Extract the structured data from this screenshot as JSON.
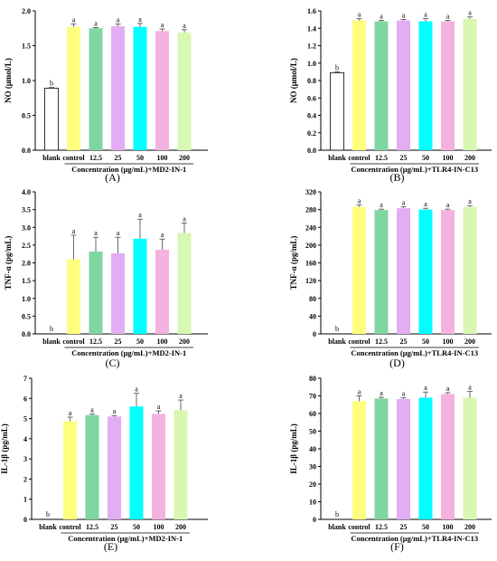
{
  "colors": {
    "blank": "#ffffff",
    "control": "#ffff7f",
    "12.5": "#7fd6a0",
    "25": "#e3adf3",
    "50": "#00ffff",
    "100": "#f5b2e0",
    "200": "#d8f7b2"
  },
  "chart_data": [
    {
      "panel": "(A)",
      "type": "bar",
      "categories": [
        "blank",
        "control",
        "12.5",
        "25",
        "50",
        "100",
        "200"
      ],
      "values": [
        0.89,
        1.77,
        1.75,
        1.78,
        1.77,
        1.71,
        1.69
      ],
      "errors": [
        0.01,
        0.04,
        0.01,
        0.03,
        0.05,
        0.03,
        0.04
      ],
      "letters": [
        "b",
        "a",
        "a",
        "a",
        "a",
        "a",
        "a"
      ],
      "ylabel": "NO (μmol/L)",
      "xlabel": "Concentration (μg/mL)+MD2-IN-1",
      "ylim": [
        0,
        2.0
      ],
      "yticks": [
        "0.0",
        "0.5",
        "1.0",
        "1.5",
        "2.0"
      ]
    },
    {
      "panel": "(B)",
      "type": "bar",
      "categories": [
        "blank",
        "control",
        "12.5",
        "25",
        "50",
        "100",
        "200"
      ],
      "values": [
        0.89,
        1.49,
        1.48,
        1.49,
        1.48,
        1.48,
        1.51
      ],
      "errors": [
        0.01,
        0.02,
        0.01,
        0.01,
        0.03,
        0.01,
        0.02
      ],
      "letters": [
        "b",
        "a",
        "a",
        "a",
        "a",
        "a",
        "a"
      ],
      "ylabel": "NO (μmol/L)",
      "xlabel": "Concentration (μg/mL)+TLR4-IN-C13",
      "ylim": [
        0,
        1.6
      ],
      "yticks": [
        "0.0",
        "0.2",
        "0.4",
        "0.6",
        "0.8",
        "1.0",
        "1.2",
        "1.4",
        "1.6"
      ]
    },
    {
      "panel": "(C)",
      "type": "bar",
      "categories": [
        "blank",
        "control",
        "12.5",
        "25",
        "50",
        "100",
        "200"
      ],
      "values": [
        0,
        2.1,
        2.32,
        2.27,
        2.68,
        2.37,
        2.84
      ],
      "errors": [
        0,
        0.68,
        0.4,
        0.45,
        0.55,
        0.3,
        0.28
      ],
      "letters": [
        "b",
        "a",
        "a",
        "a",
        "a",
        "a",
        "a"
      ],
      "ylabel": "TNF-α (pg/mL)",
      "xlabel": "Concentration (μg/mL)+MD2-IN-1",
      "ylim": [
        0,
        4.0
      ],
      "yticks": [
        "0.0",
        "0.5",
        "1.0",
        "1.5",
        "2.0",
        "2.5",
        "3.0",
        "3.5",
        "4.0"
      ]
    },
    {
      "panel": "(D)",
      "type": "bar",
      "categories": [
        "blank",
        "control",
        "12.5",
        "25",
        "50",
        "100",
        "200"
      ],
      "values": [
        0,
        286,
        279,
        283,
        280,
        279,
        286
      ],
      "errors": [
        0,
        4,
        2,
        3,
        3,
        2,
        3
      ],
      "letters": [
        "b",
        "a",
        "a",
        "a",
        "a",
        "a",
        "a"
      ],
      "ylabel": "TNF-α (pg/mL)",
      "xlabel": "Concentration (μg/mL)+TLR4-IN-C13",
      "ylim": [
        0,
        320
      ],
      "yticks": [
        "0",
        "40",
        "80",
        "120",
        "160",
        "200",
        "240",
        "280",
        "320"
      ]
    },
    {
      "panel": "(E)",
      "type": "bar",
      "categories": [
        "blank",
        "control",
        "12.5",
        "25",
        "50",
        "100",
        "200"
      ],
      "values": [
        0,
        4.87,
        5.17,
        5.1,
        5.6,
        5.23,
        5.42
      ],
      "errors": [
        0,
        0.2,
        0.05,
        0.05,
        0.65,
        0.15,
        0.5
      ],
      "letters": [
        "b",
        "a",
        "a",
        "a",
        "a",
        "a",
        "a"
      ],
      "ylabel": "IL-1β (pg/mL)",
      "xlabel": "Concentration (μg/mL)+MD2-IN-1",
      "ylim": [
        0,
        7
      ],
      "yticks": [
        "0",
        "1",
        "2",
        "3",
        "4",
        "5",
        "6",
        "7"
      ]
    },
    {
      "panel": "(F)",
      "type": "bar",
      "categories": [
        "blank",
        "control",
        "12.5",
        "25",
        "50",
        "100",
        "200"
      ],
      "values": [
        0,
        67,
        68.5,
        68.2,
        69,
        71,
        69
      ],
      "errors": [
        0,
        3,
        0.7,
        0.7,
        3.2,
        0.8,
        3.5
      ],
      "letters": [
        "b",
        "a",
        "a",
        "a",
        "a",
        "a",
        "a"
      ],
      "ylabel": "IL-1β (pg/mL)",
      "xlabel": "Concentration (μg/mL)+TLR4-IN-C13",
      "ylim": [
        0,
        80
      ],
      "yticks": [
        "0",
        "10",
        "20",
        "30",
        "40",
        "50",
        "60",
        "70",
        "80"
      ]
    }
  ]
}
